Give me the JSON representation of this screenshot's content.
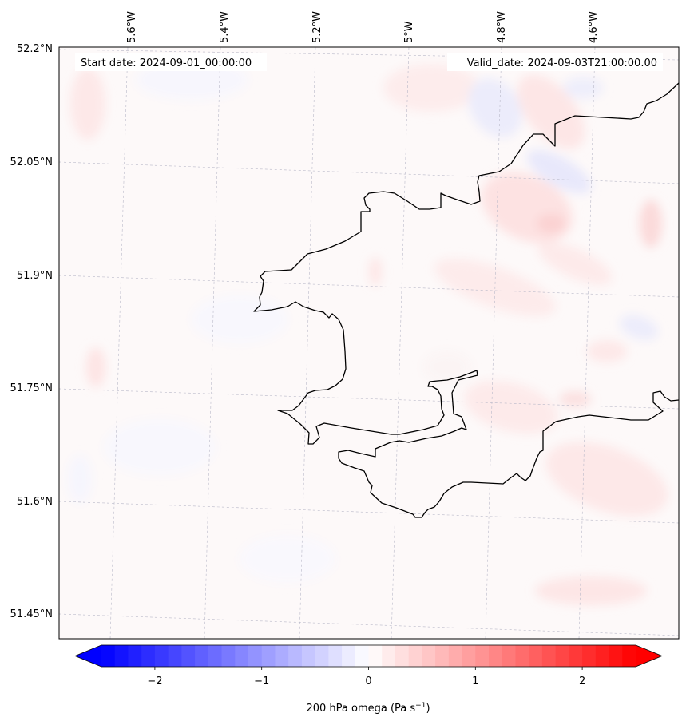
{
  "map": {
    "header_left": "Start date: 2024-09-01_00:00:00",
    "header_right": "Valid_date: 2024-09-03T21:00:00.00",
    "lon_labels": [
      "5.6°W",
      "5.4°W",
      "5.2°W",
      "5°W",
      "4.8°W",
      "4.6°W"
    ],
    "lat_labels": [
      "52.2°N",
      "52.05°N",
      "51.9°N",
      "51.75°N",
      "51.6°N",
      "51.45°N"
    ],
    "field_name": "200 hPa omega",
    "colorbar": {
      "label_prefix": "200 hPa omega (Pa s",
      "label_exp": "−1",
      "label_suffix": ")",
      "ticks": [
        "−2",
        "−1",
        "0",
        "1",
        "2"
      ],
      "tick_values": [
        -2,
        -1,
        0,
        1,
        2
      ],
      "vmin": -2.5,
      "vmax": 2.5,
      "colormap": "bwr",
      "extend": "both",
      "colors": {
        "low": "#0000ff",
        "mid": "#ffffff",
        "high": "#ff0000"
      }
    },
    "coastline_color": "#000000",
    "background_color": "#fdf9f9"
  }
}
